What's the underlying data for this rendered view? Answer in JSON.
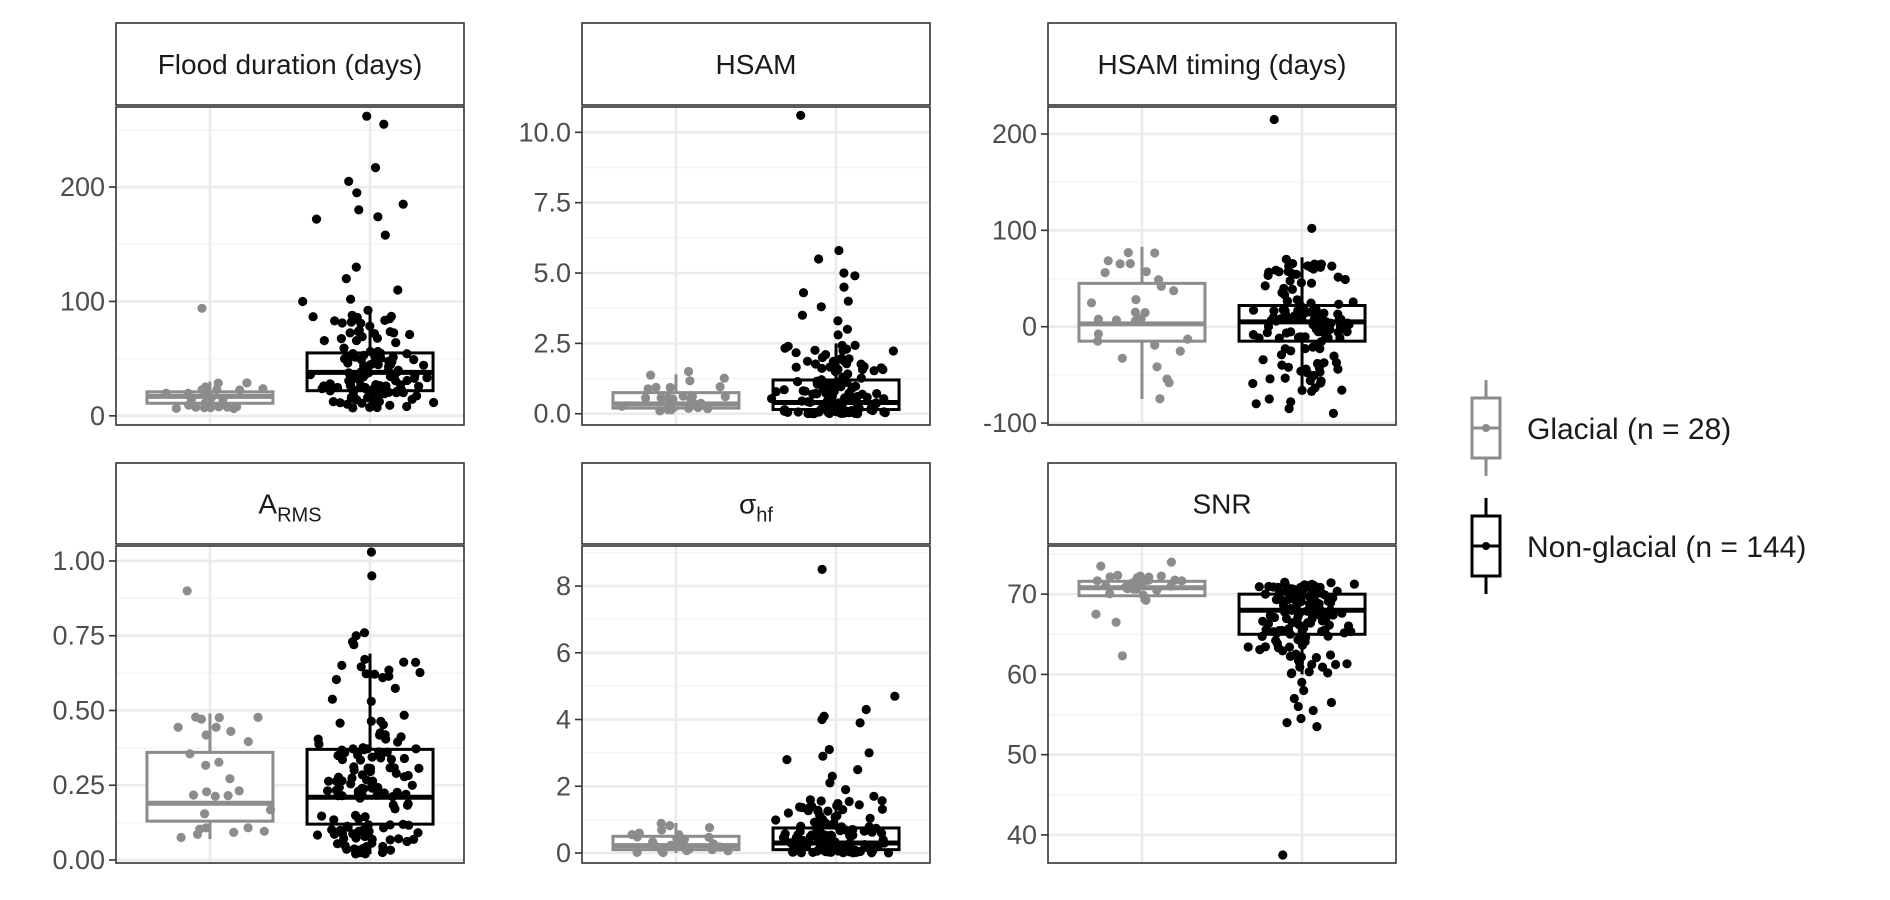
{
  "legend": {
    "entries": [
      {
        "label": "Glacial (n = 28)",
        "color": "#8c8c8c"
      },
      {
        "label": "Non-glacial (n = 144)",
        "color": "#000000"
      }
    ]
  },
  "colors": {
    "glacial": "#8c8c8c",
    "non_glacial": "#000000",
    "grid": "#ebebeb",
    "border": "#333333"
  },
  "chart_data": [
    {
      "type": "box",
      "title": "Flood duration (days)",
      "categories": [
        "Glacial",
        "Non-glacial"
      ],
      "ylim": [
        -8,
        270
      ],
      "yticks": [
        0,
        100,
        200
      ],
      "ytick_labels": [
        "0",
        "100",
        "200"
      ],
      "boxes": [
        {
          "name": "Glacial",
          "whislo": 6,
          "q1": 11,
          "med": 17,
          "q3": 21,
          "whishi": 30
        },
        {
          "name": "Non-glacial",
          "whislo": 6,
          "q1": 22,
          "med": 38,
          "q3": 55,
          "whishi": 95
        }
      ],
      "outliers": {
        "Glacial": [
          94
        ],
        "Non-glacial": [
          100,
          102,
          110,
          120,
          130,
          158,
          172,
          174,
          180,
          185,
          195,
          205,
          217,
          255,
          262
        ]
      }
    },
    {
      "type": "box",
      "title": "HSAM",
      "categories": [
        "Glacial",
        "Non-glacial"
      ],
      "ylim": [
        -0.4,
        10.9
      ],
      "yticks": [
        0,
        2.5,
        5,
        7.5,
        10
      ],
      "ytick_labels": [
        "0.0",
        "2.5",
        "5.0",
        "7.5",
        "10.0"
      ],
      "boxes": [
        {
          "name": "Glacial",
          "whislo": 0.1,
          "q1": 0.2,
          "med": 0.35,
          "q3": 0.75,
          "whishi": 1.4
        },
        {
          "name": "Non-glacial",
          "whislo": 0.0,
          "q1": 0.15,
          "med": 0.4,
          "q3": 1.2,
          "whishi": 2.5
        }
      ],
      "outliers": {
        "Glacial": [
          1.5
        ],
        "Non-glacial": [
          2.8,
          3.0,
          3.3,
          3.5,
          3.8,
          4.0,
          4.3,
          4.5,
          4.9,
          5.0,
          5.5,
          5.8,
          10.6
        ]
      }
    },
    {
      "type": "box",
      "title": "HSAM timing (days)",
      "categories": [
        "Glacial",
        "Non-glacial"
      ],
      "ylim": [
        -102,
        228
      ],
      "yticks": [
        -100,
        0,
        100,
        200
      ],
      "ytick_labels": [
        "-100",
        "0",
        "100",
        "200"
      ],
      "boxes": [
        {
          "name": "Glacial",
          "whislo": -75,
          "q1": -15,
          "med": 3,
          "q3": 45,
          "whishi": 83
        },
        {
          "name": "Non-glacial",
          "whislo": -68,
          "q1": -15,
          "med": 5,
          "q3": 22,
          "whishi": 72
        }
      ],
      "outliers": {
        "Glacial": [],
        "Non-glacial": [
          -90,
          -85,
          -80,
          -78,
          -75,
          102,
          215
        ]
      }
    },
    {
      "type": "box",
      "title": "A",
      "title_sub": "RMS",
      "categories": [
        "Glacial",
        "Non-glacial"
      ],
      "ylim": [
        -0.01,
        1.05
      ],
      "yticks": [
        0,
        0.25,
        0.5,
        0.75,
        1.0
      ],
      "ytick_labels": [
        "0.00",
        "0.25",
        "0.50",
        "0.75",
        "1.00"
      ],
      "boxes": [
        {
          "name": "Glacial",
          "whislo": 0.07,
          "q1": 0.13,
          "med": 0.19,
          "q3": 0.36,
          "whishi": 0.49
        },
        {
          "name": "Non-glacial",
          "whislo": 0.02,
          "q1": 0.12,
          "med": 0.21,
          "q3": 0.37,
          "whishi": 0.69
        }
      ],
      "outliers": {
        "Glacial": [
          0.9
        ],
        "Non-glacial": [
          0.72,
          0.73,
          0.75,
          0.76,
          0.95,
          1.03
        ]
      }
    },
    {
      "type": "box",
      "title": "σ",
      "title_sub": "hf",
      "categories": [
        "Glacial",
        "Non-glacial"
      ],
      "ylim": [
        -0.3,
        9.2
      ],
      "yticks": [
        0,
        2,
        4,
        6,
        8
      ],
      "ytick_labels": [
        "0",
        "2",
        "4",
        "6",
        "8"
      ],
      "boxes": [
        {
          "name": "Glacial",
          "whislo": 0.0,
          "q1": 0.1,
          "med": 0.22,
          "q3": 0.5,
          "whishi": 0.9
        },
        {
          "name": "Non-glacial",
          "whislo": 0.0,
          "q1": 0.1,
          "med": 0.3,
          "q3": 0.75,
          "whishi": 1.6
        }
      ],
      "outliers": {
        "Glacial": [],
        "Non-glacial": [
          1.7,
          1.9,
          2.1,
          2.3,
          2.5,
          2.8,
          2.9,
          3.0,
          3.1,
          3.9,
          4.0,
          4.1,
          4.3,
          4.7,
          8.5
        ]
      }
    },
    {
      "type": "box",
      "title": "SNR",
      "categories": [
        "Glacial",
        "Non-glacial"
      ],
      "ylim": [
        36.5,
        76
      ],
      "yticks": [
        40,
        50,
        60,
        70
      ],
      "ytick_labels": [
        "40",
        "50",
        "60",
        "70"
      ],
      "boxes": [
        {
          "name": "Glacial",
          "whislo": 69,
          "q1": 69.8,
          "med": 70.8,
          "q3": 71.6,
          "whishi": 72.5
        },
        {
          "name": "Non-glacial",
          "whislo": 60,
          "q1": 65,
          "med": 68,
          "q3": 70,
          "whishi": 71.5
        }
      ],
      "outliers": {
        "Glacial": [
          62.3,
          66.5,
          67.5,
          73.5,
          74
        ],
        "Non-glacial": [
          37.5,
          53.5,
          54,
          54.5,
          55.5,
          56,
          56.5,
          57,
          58,
          59
        ]
      }
    }
  ]
}
